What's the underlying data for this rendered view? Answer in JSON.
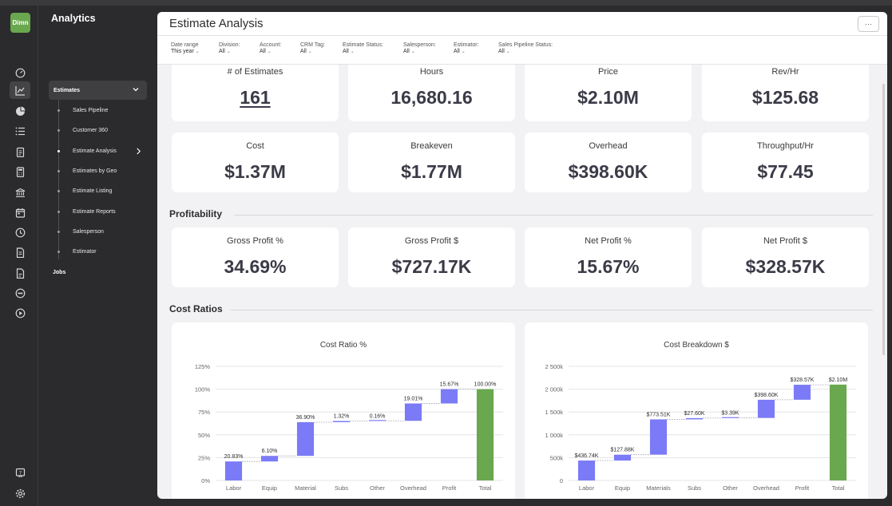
{
  "app": {
    "logo_text": "Dimn",
    "section_title": "Analytics"
  },
  "rail_icons": [
    {
      "name": "dashboard-icon"
    },
    {
      "name": "line-chart-icon",
      "active": true
    },
    {
      "name": "pie-chart-icon"
    },
    {
      "name": "list-icon"
    },
    {
      "name": "clipboard-icon"
    },
    {
      "name": "calculator-icon"
    },
    {
      "name": "bank-icon"
    },
    {
      "name": "calendar-icon"
    },
    {
      "name": "clock-icon"
    },
    {
      "name": "document-icon"
    },
    {
      "name": "file-icon"
    },
    {
      "name": "link-icon"
    },
    {
      "name": "play-icon"
    }
  ],
  "rail_bottom_icons": [
    {
      "name": "help-icon"
    },
    {
      "name": "settings-icon"
    }
  ],
  "nav": {
    "group_label": "Estimates",
    "items": [
      {
        "label": "Sales Pipeline"
      },
      {
        "label": "Customer 360"
      },
      {
        "label": "Estimate Analysis",
        "active": true
      },
      {
        "label": "Estimates by Geo"
      },
      {
        "label": "Estimate Listing"
      },
      {
        "label": "Estimate Reports"
      },
      {
        "label": "Salesperson"
      },
      {
        "label": "Estimator"
      }
    ],
    "jobs_label": "Jobs"
  },
  "header": {
    "title": "Estimate Analysis",
    "more_label": "···"
  },
  "filters": [
    {
      "label": "Date range",
      "value": "This year"
    },
    {
      "label": "Division:",
      "value": "All"
    },
    {
      "label": "Account:",
      "value": "All"
    },
    {
      "label": "CRM Tag:",
      "value": "All"
    },
    {
      "label": "Estimate Status:",
      "value": "All"
    },
    {
      "label": "Salesperson:",
      "value": "All"
    },
    {
      "label": "Estimator:",
      "value": "All"
    },
    {
      "label": "Sales Pipeline Status:",
      "value": "All"
    }
  ],
  "kpis_row1": [
    {
      "label": "# of Estimates",
      "value": "161",
      "link": true
    },
    {
      "label": "Hours",
      "value": "16,680.16"
    },
    {
      "label": "Price",
      "value": "$2.10M"
    },
    {
      "label": "Rev/Hr",
      "value": "$125.68"
    }
  ],
  "kpis_row2": [
    {
      "label": "Cost",
      "value": "$1.37M"
    },
    {
      "label": "Breakeven",
      "value": "$1.77M"
    },
    {
      "label": "Overhead",
      "value": "$398.60K"
    },
    {
      "label": "Throughput/Hr",
      "value": "$77.45"
    }
  ],
  "profitability": {
    "title": "Profitability",
    "kpis": [
      {
        "label": "Gross Profit %",
        "value": "34.69%"
      },
      {
        "label": "Gross Profit $",
        "value": "$727.17K"
      },
      {
        "label": "Net Profit %",
        "value": "15.67%"
      },
      {
        "label": "Net Profit $",
        "value": "$328.57K"
      }
    ]
  },
  "cost_ratios": {
    "title": "Cost Ratios"
  },
  "colors": {
    "bar": "#7b7bf7",
    "total": "#6aa84f"
  },
  "chart_data": [
    {
      "type": "bar",
      "subtype": "waterfall",
      "title": "Cost Ratio %",
      "categories": [
        "Labor",
        "Equip",
        "Material",
        "Subs",
        "Other",
        "Overhead",
        "Profit",
        "Total"
      ],
      "values": [
        20.83,
        6.1,
        36.9,
        1.32,
        0.16,
        19.01,
        15.67,
        100.0
      ],
      "data_labels": [
        "20.83%",
        "6.10%",
        "36.90%",
        "1.32%",
        "0.16%",
        "19.01%",
        "15.67%",
        "100.00%"
      ],
      "yticks": [
        0,
        25,
        50,
        75,
        100,
        125
      ],
      "ytick_labels": [
        "0%",
        "25%",
        "50%",
        "75%",
        "100%",
        "125%"
      ],
      "ylim": [
        0,
        125
      ]
    },
    {
      "type": "bar",
      "subtype": "waterfall",
      "title": "Cost Breakdown $",
      "categories": [
        "Labor",
        "Equip",
        "Materials",
        "Subs",
        "Other",
        "Overhead",
        "Profit",
        "Total"
      ],
      "values": [
        436.74,
        127.88,
        773.51,
        27.6,
        3.39,
        398.6,
        328.57,
        2100
      ],
      "data_labels": [
        "$436.74K",
        "$127.88K",
        "$773.51K",
        "$27.60K",
        "$3.39K",
        "$398.60K",
        "$328.57K",
        "$2.10M"
      ],
      "yticks": [
        0,
        500,
        1000,
        1500,
        2000,
        2500
      ],
      "ytick_labels": [
        "0",
        "500k",
        "1 000k",
        "1 500k",
        "2 000k",
        "2 500k"
      ],
      "ylim": [
        0,
        2500
      ]
    }
  ]
}
